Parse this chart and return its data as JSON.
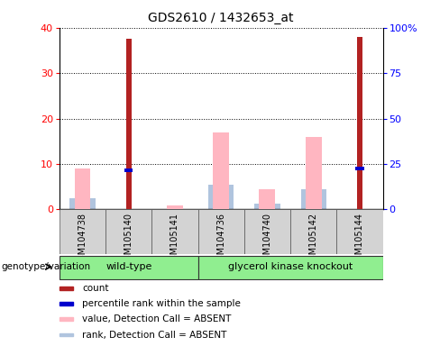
{
  "title": "GDS2610 / 1432653_at",
  "samples": [
    "GSM104738",
    "GSM105140",
    "GSM105141",
    "GSM104736",
    "GSM104740",
    "GSM105142",
    "GSM105144"
  ],
  "count_values": [
    0,
    37.5,
    0,
    0,
    0,
    0,
    38.0
  ],
  "percentile_rank_values": [
    0,
    8.5,
    0,
    0,
    0,
    0,
    9.0
  ],
  "absent_value_values": [
    9.0,
    0,
    0.8,
    17.0,
    4.5,
    16.0,
    0
  ],
  "absent_rank_values": [
    2.5,
    0,
    0.1,
    5.5,
    1.2,
    4.5,
    0
  ],
  "ylim_left": [
    0,
    40
  ],
  "ylim_right": [
    0,
    100
  ],
  "yticks_left": [
    0,
    10,
    20,
    30,
    40
  ],
  "yticks_right": [
    0,
    25,
    50,
    75,
    100
  ],
  "ytick_labels_right": [
    "0",
    "25",
    "50",
    "75",
    "100%"
  ],
  "count_color": "#b22222",
  "percentile_color": "#0000cd",
  "absent_value_color": "#ffb6c1",
  "absent_rank_color": "#b0c4de",
  "group_bg": "#90ee90",
  "sample_bg": "#d3d3d3",
  "wild_type_indices": [
    0,
    1,
    2
  ],
  "knockout_indices": [
    3,
    4,
    5,
    6
  ],
  "legend_items": [
    {
      "label": "count",
      "color": "#b22222"
    },
    {
      "label": "percentile rank within the sample",
      "color": "#0000cd"
    },
    {
      "label": "value, Detection Call = ABSENT",
      "color": "#ffb6c1"
    },
    {
      "label": "rank, Detection Call = ABSENT",
      "color": "#b0c4de"
    }
  ],
  "genotype_label": "genotype/variation"
}
